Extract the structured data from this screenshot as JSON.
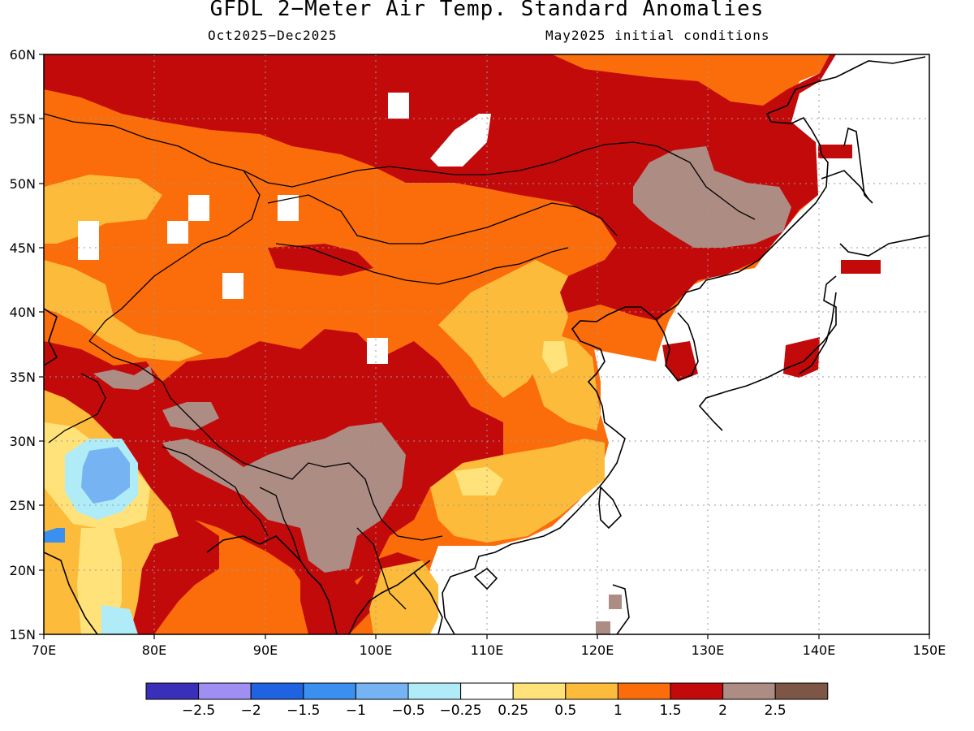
{
  "title": "GFDL 2−Meter Air Temp. Standard Anomalies",
  "subtitle_left": "Oct2025−Dec2025",
  "subtitle_right": "May2025 initial conditions",
  "lat_labels": [
    "60N",
    "55N",
    "50N",
    "45N",
    "40N",
    "35N",
    "30N",
    "25N",
    "20N",
    "15N"
  ],
  "lon_labels": [
    "70E",
    "80E",
    "90E",
    "100E",
    "110E",
    "120E",
    "130E",
    "140E",
    "150E"
  ],
  "colorbar": {
    "colors": [
      "#3a2fb8",
      "#9f8ff2",
      "#1f63e0",
      "#3b8fef",
      "#75b3f2",
      "#b0ebf8",
      "#ffffff",
      "#ffe37a",
      "#fdbb3b",
      "#fb6c0b",
      "#c20a0a",
      "#ad8c84",
      "#7e5648"
    ],
    "labels": [
      "−2.5",
      "−2",
      "−1.5",
      "−1",
      "−0.5",
      "−0.25",
      "0.25",
      "0.5",
      "1",
      "1.5",
      "2",
      "2.5"
    ]
  },
  "map_colors": {
    "ocean": "#ffffff",
    "anomaly_0_5": "#ffe37a",
    "anomaly_1": "#fdbb3b",
    "anomaly_1_5": "#fb6c0b",
    "anomaly_2": "#c20a0a",
    "anomaly_2_5": "#ad8c84",
    "anomaly_neg": "#75b3f2",
    "anomaly_neg2": "#3b8fef",
    "anomaly_neg_small": "#b0ebf8"
  }
}
